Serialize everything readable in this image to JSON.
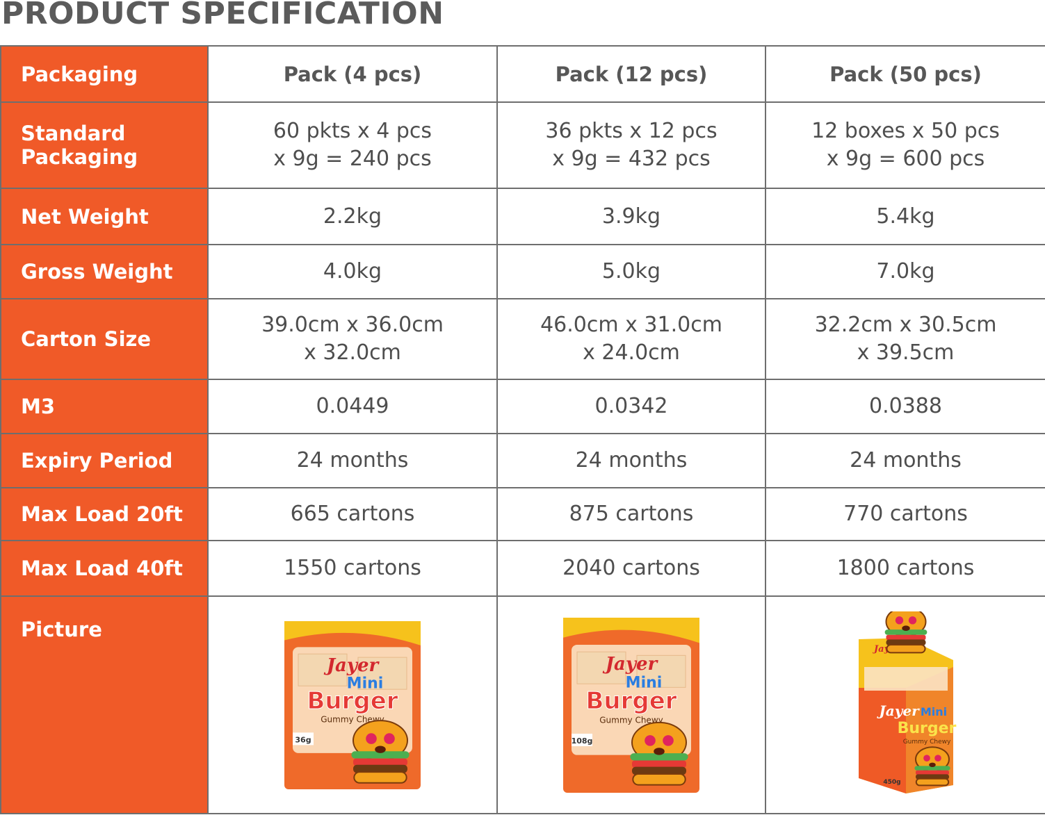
{
  "title": "PRODUCT SPECIFICATION",
  "header": {
    "label": "Packaging",
    "columns": [
      "Pack (4 pcs)",
      "Pack (12 pcs)",
      "Pack (50 pcs)"
    ]
  },
  "rows": [
    {
      "label": "Standard Packaging",
      "values": [
        [
          "60 pkts x 4 pcs",
          "x 9g = 240 pcs"
        ],
        [
          "36 pkts x 12 pcs",
          "x 9g = 432 pcs"
        ],
        [
          "12 boxes x 50 pcs",
          "x 9g = 600 pcs"
        ]
      ]
    },
    {
      "label": "Net Weight",
      "values": [
        [
          "2.2kg"
        ],
        [
          "3.9kg"
        ],
        [
          "5.4kg"
        ]
      ]
    },
    {
      "label": "Gross Weight",
      "values": [
        [
          "4.0kg"
        ],
        [
          "5.0kg"
        ],
        [
          "7.0kg"
        ]
      ]
    },
    {
      "label": "Carton Size",
      "values": [
        [
          "39.0cm x 36.0cm",
          "x 32.0cm"
        ],
        [
          "46.0cm x 31.0cm",
          "x 24.0cm"
        ],
        [
          "32.2cm x 30.5cm",
          "x 39.5cm"
        ]
      ]
    },
    {
      "label": "M3",
      "values": [
        [
          "0.0449"
        ],
        [
          "0.0342"
        ],
        [
          "0.0388"
        ]
      ]
    },
    {
      "label": "Expiry Period",
      "values": [
        [
          "24 months"
        ],
        [
          "24 months"
        ],
        [
          "24 months"
        ]
      ]
    },
    {
      "label": "Max Load 20ft",
      "values": [
        [
          "665 cartons"
        ],
        [
          "875 cartons"
        ],
        [
          "770 cartons"
        ]
      ]
    },
    {
      "label": "Max Load 40ft",
      "values": [
        [
          "1550 cartons"
        ],
        [
          "2040 cartons"
        ],
        [
          "1800 cartons"
        ]
      ]
    }
  ],
  "picture": {
    "label": "Picture",
    "products": [
      {
        "brand": "Jayer",
        "name_1": "Mini",
        "name_2": "Burger",
        "subtitle": "Gummy Chewy",
        "weight": "36g"
      },
      {
        "brand": "Jayer",
        "name_1": "Mini",
        "name_2": "Burger",
        "subtitle": "Gummy Chewy",
        "weight": "108g"
      },
      {
        "brand": "Jayer",
        "name_1": "Mini",
        "name_2": "Burger",
        "subtitle": "Gummy Chewy",
        "weight": "450g"
      }
    ]
  },
  "colors": {
    "accent": "#f05a28",
    "border": "#6e6e6e",
    "title_text": "#5b5b5b",
    "cell_text": "#4e4e4e"
  }
}
